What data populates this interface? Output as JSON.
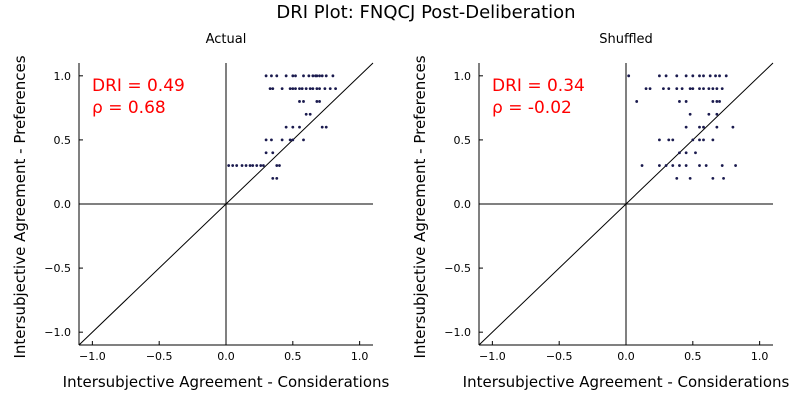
{
  "suptitle": "DRI Plot: FNQCJ Post-Deliberation",
  "colors": {
    "points": "#1a1a4e",
    "annotation": "#ff0000",
    "axis": "#000000"
  },
  "chart_data": [
    {
      "type": "scatter",
      "title": "Actual",
      "xlabel": "Intersubjective Agreement - Considerations",
      "ylabel": "Intersubjective Agreement - Preferences",
      "xlim": [
        -1.1,
        1.1
      ],
      "ylim": [
        -1.1,
        1.1
      ],
      "xticks": [
        -1.0,
        -0.5,
        0.0,
        0.5,
        1.0
      ],
      "yticks": [
        -1.0,
        -0.5,
        0.0,
        0.5,
        1.0
      ],
      "xtick_labels": [
        "−1.0",
        "−0.5",
        "0.0",
        "0.5",
        "1.0"
      ],
      "ytick_labels": [
        "−1.0",
        "−0.5",
        "0.0",
        "0.5",
        "1.0"
      ],
      "grid": false,
      "annotations": [
        "DRI = 0.49",
        "ρ = 0.68"
      ],
      "reference_lines": [
        "y = x",
        "x = 0",
        "y = 0"
      ],
      "points": [
        [
          0.3,
          1.0
        ],
        [
          0.34,
          1.0
        ],
        [
          0.38,
          1.0
        ],
        [
          0.45,
          1.0
        ],
        [
          0.5,
          1.0
        ],
        [
          0.52,
          1.0
        ],
        [
          0.58,
          1.0
        ],
        [
          0.62,
          1.0
        ],
        [
          0.65,
          1.0
        ],
        [
          0.67,
          1.0
        ],
        [
          0.68,
          1.0
        ],
        [
          0.7,
          1.0
        ],
        [
          0.72,
          1.0
        ],
        [
          0.75,
          1.0
        ],
        [
          0.8,
          1.0
        ],
        [
          0.33,
          0.9
        ],
        [
          0.35,
          0.9
        ],
        [
          0.42,
          0.9
        ],
        [
          0.48,
          0.9
        ],
        [
          0.5,
          0.9
        ],
        [
          0.52,
          0.9
        ],
        [
          0.55,
          0.9
        ],
        [
          0.57,
          0.9
        ],
        [
          0.6,
          0.9
        ],
        [
          0.63,
          0.9
        ],
        [
          0.65,
          0.9
        ],
        [
          0.68,
          0.9
        ],
        [
          0.7,
          0.9
        ],
        [
          0.74,
          0.9
        ],
        [
          0.78,
          0.9
        ],
        [
          0.82,
          0.9
        ],
        [
          0.55,
          0.8
        ],
        [
          0.58,
          0.8
        ],
        [
          0.68,
          0.8
        ],
        [
          0.7,
          0.8
        ],
        [
          0.6,
          0.7
        ],
        [
          0.63,
          0.7
        ],
        [
          0.45,
          0.6
        ],
        [
          0.5,
          0.6
        ],
        [
          0.55,
          0.6
        ],
        [
          0.72,
          0.6
        ],
        [
          0.75,
          0.6
        ],
        [
          0.3,
          0.5
        ],
        [
          0.34,
          0.5
        ],
        [
          0.42,
          0.5
        ],
        [
          0.48,
          0.5
        ],
        [
          0.5,
          0.5
        ],
        [
          0.58,
          0.5
        ],
        [
          0.3,
          0.4
        ],
        [
          0.35,
          0.4
        ],
        [
          0.02,
          0.3
        ],
        [
          0.05,
          0.3
        ],
        [
          0.08,
          0.3
        ],
        [
          0.12,
          0.3
        ],
        [
          0.15,
          0.3
        ],
        [
          0.18,
          0.3
        ],
        [
          0.2,
          0.3
        ],
        [
          0.23,
          0.3
        ],
        [
          0.26,
          0.3
        ],
        [
          0.28,
          0.3
        ],
        [
          0.38,
          0.3
        ],
        [
          0.4,
          0.3
        ],
        [
          0.35,
          0.2
        ],
        [
          0.38,
          0.2
        ]
      ]
    },
    {
      "type": "scatter",
      "title": "Shuffled",
      "xlabel": "Intersubjective Agreement - Considerations",
      "ylabel": "Intersubjective Agreement - Preferences",
      "xlim": [
        -1.1,
        1.1
      ],
      "ylim": [
        -1.1,
        1.1
      ],
      "xticks": [
        -1.0,
        -0.5,
        0.0,
        0.5,
        1.0
      ],
      "yticks": [
        -1.0,
        -0.5,
        0.0,
        0.5,
        1.0
      ],
      "xtick_labels": [
        "−1.0",
        "−0.5",
        "0.0",
        "0.5",
        "1.0"
      ],
      "ytick_labels": [
        "−1.0",
        "−0.5",
        "0.0",
        "0.5",
        "1.0"
      ],
      "grid": false,
      "annotations": [
        "DRI = 0.34",
        "ρ = -0.02"
      ],
      "reference_lines": [
        "y = x",
        "x = 0",
        "y = 0"
      ],
      "points": [
        [
          0.02,
          1.0
        ],
        [
          0.25,
          1.0
        ],
        [
          0.3,
          1.0
        ],
        [
          0.38,
          1.0
        ],
        [
          0.45,
          1.0
        ],
        [
          0.5,
          1.0
        ],
        [
          0.55,
          1.0
        ],
        [
          0.58,
          1.0
        ],
        [
          0.63,
          1.0
        ],
        [
          0.67,
          1.0
        ],
        [
          0.7,
          1.0
        ],
        [
          0.75,
          1.0
        ],
        [
          0.15,
          0.9
        ],
        [
          0.18,
          0.9
        ],
        [
          0.28,
          0.9
        ],
        [
          0.32,
          0.9
        ],
        [
          0.38,
          0.9
        ],
        [
          0.42,
          0.9
        ],
        [
          0.48,
          0.9
        ],
        [
          0.5,
          0.9
        ],
        [
          0.55,
          0.9
        ],
        [
          0.58,
          0.9
        ],
        [
          0.62,
          0.9
        ],
        [
          0.65,
          0.9
        ],
        [
          0.68,
          0.9
        ],
        [
          0.72,
          0.9
        ],
        [
          0.08,
          0.8
        ],
        [
          0.4,
          0.8
        ],
        [
          0.45,
          0.8
        ],
        [
          0.65,
          0.8
        ],
        [
          0.68,
          0.8
        ],
        [
          0.7,
          0.8
        ],
        [
          0.48,
          0.7
        ],
        [
          0.62,
          0.7
        ],
        [
          0.68,
          0.7
        ],
        [
          0.45,
          0.6
        ],
        [
          0.55,
          0.6
        ],
        [
          0.58,
          0.6
        ],
        [
          0.68,
          0.6
        ],
        [
          0.8,
          0.6
        ],
        [
          0.25,
          0.5
        ],
        [
          0.32,
          0.5
        ],
        [
          0.35,
          0.5
        ],
        [
          0.5,
          0.5
        ],
        [
          0.55,
          0.5
        ],
        [
          0.58,
          0.5
        ],
        [
          0.65,
          0.5
        ],
        [
          0.4,
          0.4
        ],
        [
          0.45,
          0.4
        ],
        [
          0.52,
          0.4
        ],
        [
          0.12,
          0.3
        ],
        [
          0.25,
          0.3
        ],
        [
          0.3,
          0.3
        ],
        [
          0.35,
          0.3
        ],
        [
          0.4,
          0.3
        ],
        [
          0.45,
          0.3
        ],
        [
          0.55,
          0.3
        ],
        [
          0.6,
          0.3
        ],
        [
          0.72,
          0.3
        ],
        [
          0.82,
          0.3
        ],
        [
          0.38,
          0.2
        ],
        [
          0.48,
          0.2
        ],
        [
          0.65,
          0.2
        ],
        [
          0.73,
          0.2
        ]
      ]
    }
  ]
}
